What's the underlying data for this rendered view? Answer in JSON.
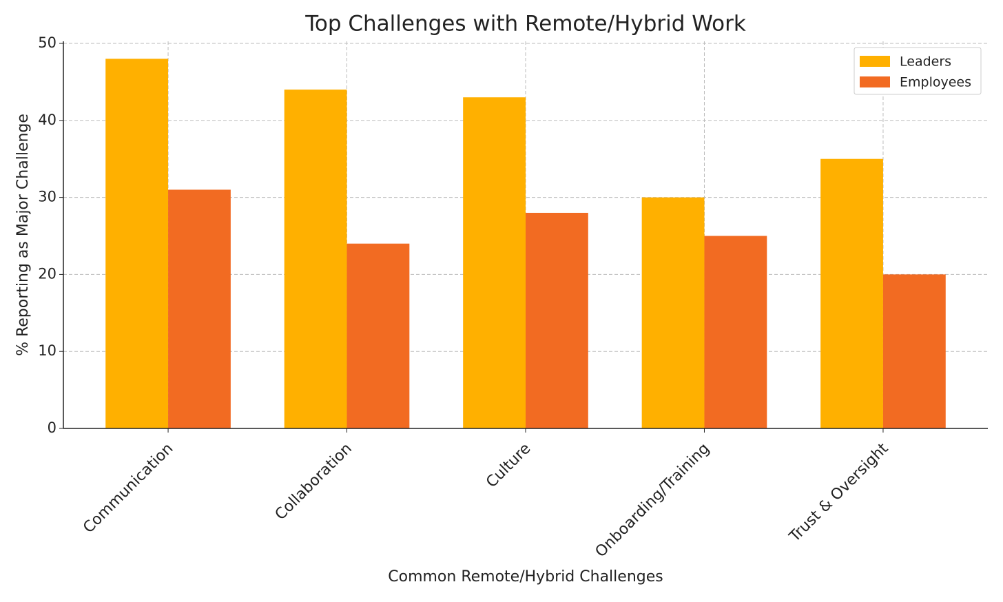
{
  "chart_data": {
    "type": "bar",
    "title": "Top Challenges with Remote/Hybrid Work",
    "x_label": "Common Remote/Hybrid Challenges",
    "y_label": "% Reporting as Major Challenge",
    "categories": [
      "Communication",
      "Collaboration",
      "Culture",
      "Onboarding/Training",
      "Trust & Oversight"
    ],
    "series": [
      {
        "name": "Leaders",
        "color": "#ffb000",
        "values": [
          48,
          44,
          43,
          30,
          35
        ]
      },
      {
        "name": "Employees",
        "color": "#f26b22",
        "values": [
          31,
          24,
          28,
          25,
          20
        ]
      }
    ],
    "ylim": [
      0,
      50
    ],
    "yticks": [
      0,
      10,
      20,
      30,
      40,
      50
    ],
    "grid": true,
    "legend": "upper right"
  }
}
